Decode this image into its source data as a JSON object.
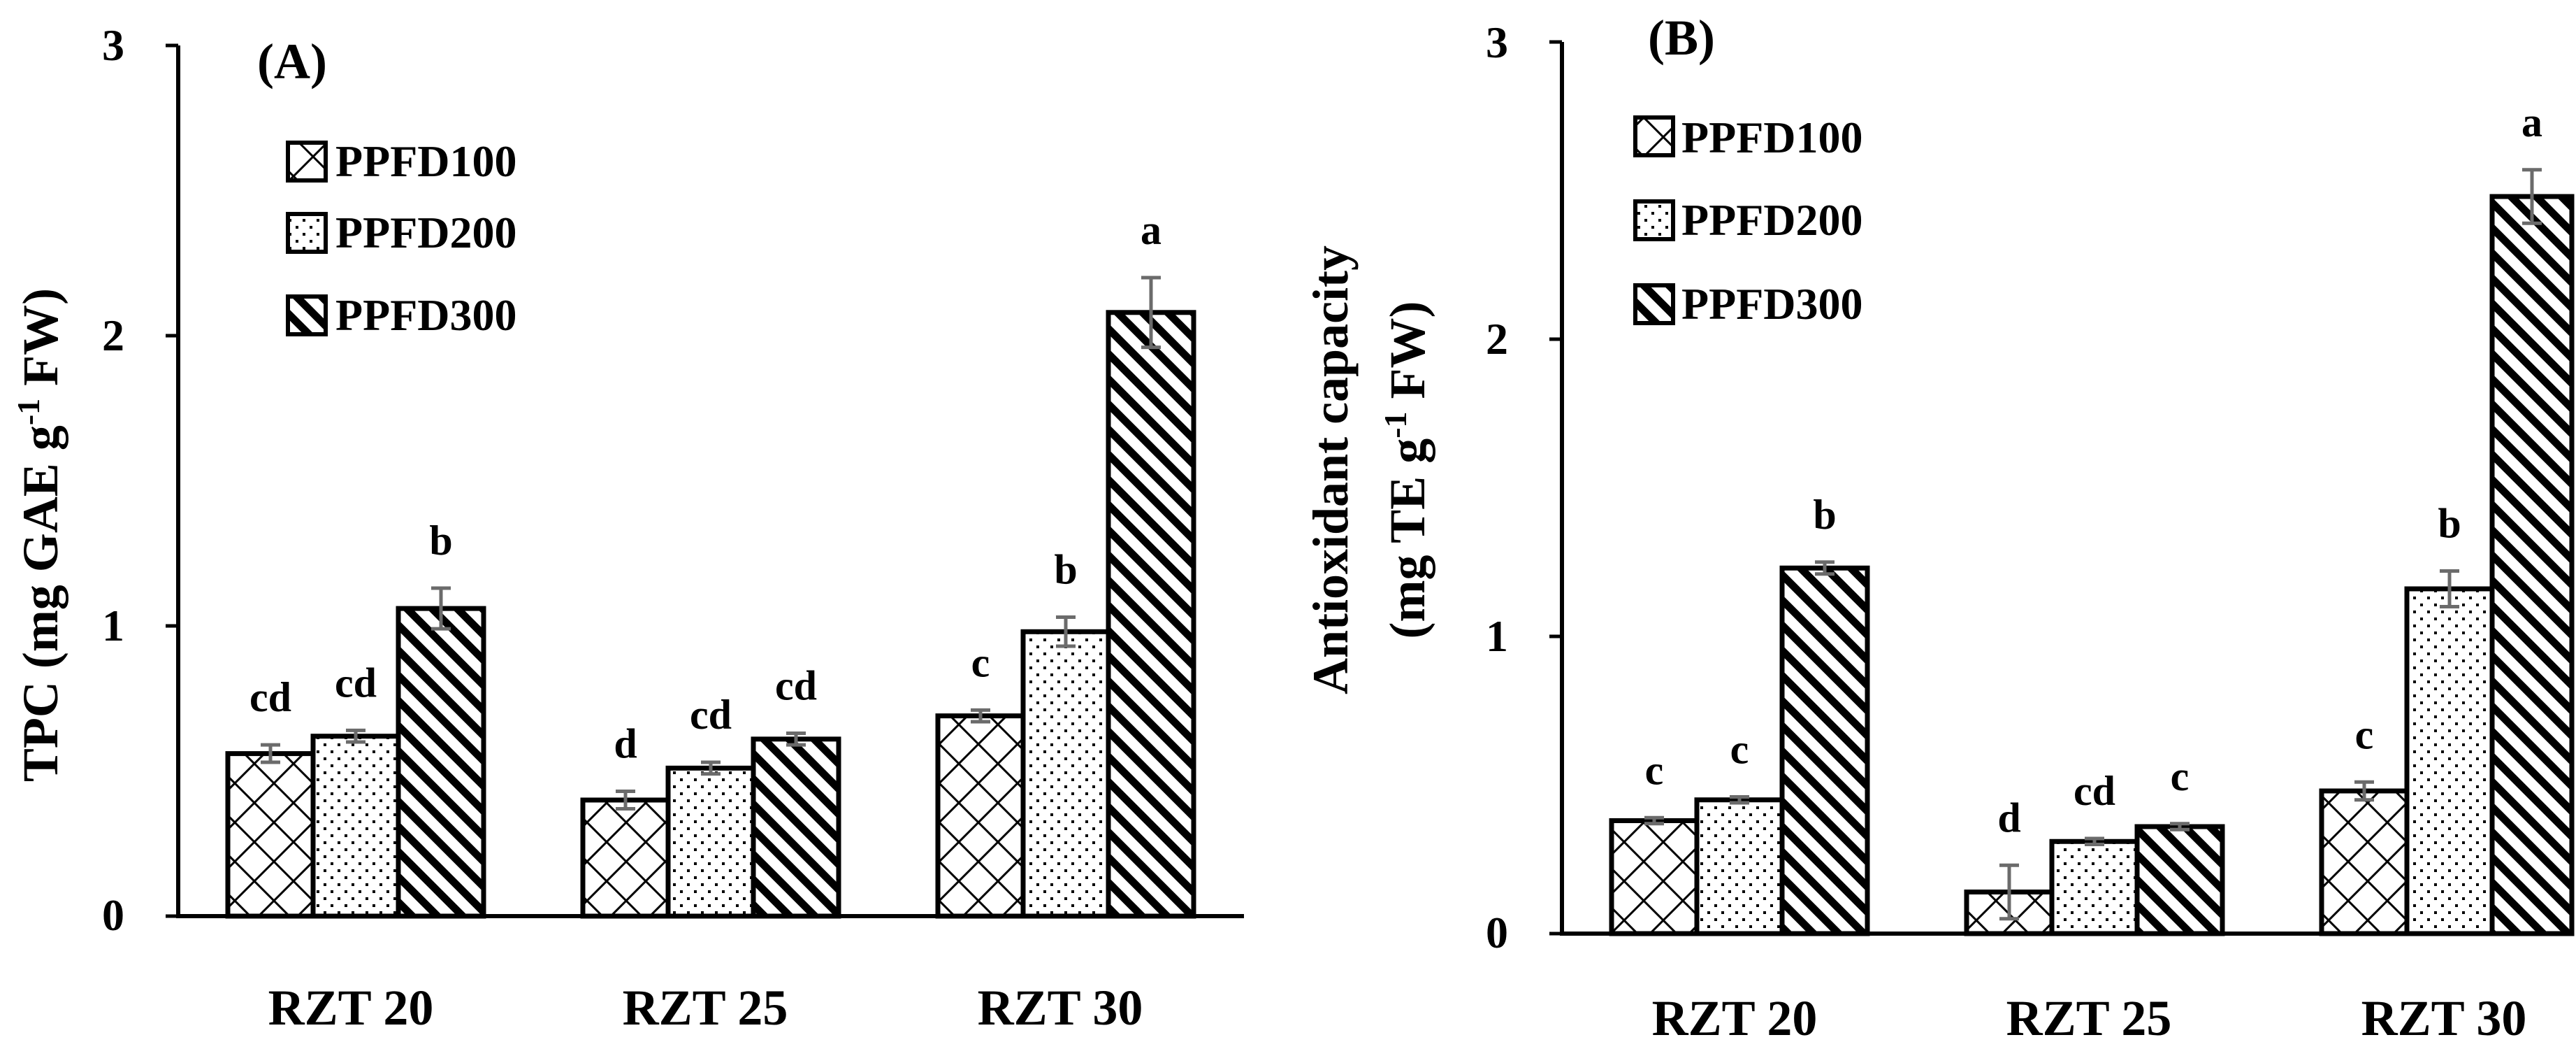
{
  "colors": {
    "ink": "#000000",
    "error_bar": "#6b6b6b",
    "background": "#ffffff"
  },
  "patterns": [
    {
      "series": "PPFD100",
      "pattern": "diagonal-crosshatch"
    },
    {
      "series": "PPFD200",
      "pattern": "dots"
    },
    {
      "series": "PPFD300",
      "pattern": "wide-downward-diagonal"
    }
  ],
  "chart_data": [
    {
      "type": "bar",
      "panel": "(A)",
      "title": "",
      "ylabel_main": "TPC (mg GAE g",
      "ylabel_sup": "-1",
      "ylabel_tail": " FW)",
      "xlabel": "",
      "ylim": [
        0,
        3
      ],
      "yticks": [
        "0",
        "1",
        "2",
        "3"
      ],
      "legend_position": "top-left",
      "categories": [
        "RZT 20",
        "RZT 25",
        "RZT 30"
      ],
      "series": [
        {
          "name": "PPFD100",
          "values": [
            0.56,
            0.4,
            0.69
          ],
          "errors": [
            0.03,
            0.03,
            0.02
          ],
          "letters": [
            "cd",
            "d",
            "c"
          ]
        },
        {
          "name": "PPFD200",
          "values": [
            0.62,
            0.51,
            0.98
          ],
          "errors": [
            0.02,
            0.02,
            0.05
          ],
          "letters": [
            "cd",
            "cd",
            "b"
          ]
        },
        {
          "name": "PPFD300",
          "values": [
            1.06,
            0.61,
            2.08
          ],
          "errors": [
            0.07,
            0.02,
            0.12
          ],
          "letters": [
            "b",
            "cd",
            "a"
          ]
        }
      ]
    },
    {
      "type": "bar",
      "panel": "(B)",
      "title": "",
      "ylabel_line1": "Antioxidant capacity",
      "ylabel_main": "(mg TE g",
      "ylabel_sup": "-1",
      "ylabel_tail": " FW)",
      "xlabel": "",
      "ylim": [
        0,
        3
      ],
      "yticks": [
        "0",
        "1",
        "2",
        "3"
      ],
      "legend_position": "top-left",
      "categories": [
        "RZT 20",
        "RZT 25",
        "RZT 30"
      ],
      "series": [
        {
          "name": "PPFD100",
          "values": [
            0.38,
            0.14,
            0.48
          ],
          "errors": [
            0.01,
            0.09,
            0.03
          ],
          "letters": [
            "c",
            "d",
            "c"
          ]
        },
        {
          "name": "PPFD200",
          "values": [
            0.45,
            0.31,
            1.16
          ],
          "errors": [
            0.01,
            0.01,
            0.06
          ],
          "letters": [
            "c",
            "cd",
            "b"
          ]
        },
        {
          "name": "PPFD300",
          "values": [
            1.23,
            0.36,
            2.48
          ],
          "errors": [
            0.02,
            0.01,
            0.09
          ],
          "letters": [
            "b",
            "c",
            "a"
          ]
        }
      ]
    }
  ]
}
